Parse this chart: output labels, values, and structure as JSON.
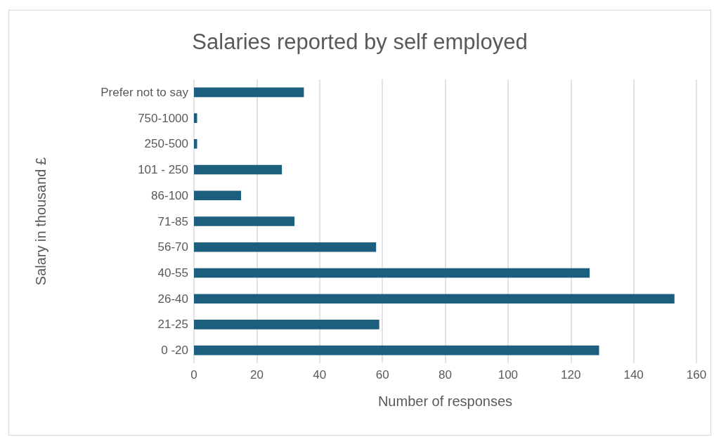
{
  "chart_data": {
    "type": "bar",
    "orientation": "horizontal",
    "title": "Salaries reported by self employed",
    "xlabel": "Number of responses",
    "ylabel": "Salary in thousand £",
    "categories": [
      "Prefer not to say",
      "750-1000",
      "250-500",
      "101 - 250",
      "86-100",
      "71-85",
      "56-70",
      "40-55",
      "26-40",
      "21-25",
      "0 -20"
    ],
    "values": [
      35,
      1,
      1,
      28,
      15,
      32,
      58,
      126,
      153,
      59,
      129
    ],
    "color": "#1b5e7e",
    "xlim": [
      0,
      160
    ],
    "xticks": [
      0,
      20,
      40,
      60,
      80,
      100,
      120,
      140,
      160
    ],
    "grid": "x"
  }
}
